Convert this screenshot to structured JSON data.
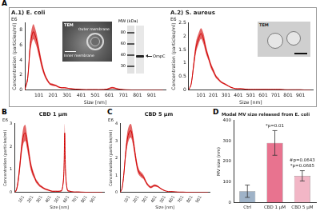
{
  "figure": {
    "panel_labels": [
      "A",
      "B",
      "C",
      "D"
    ],
    "tem_e_coli": {
      "title": "TEM",
      "labels": [
        "Outer membrane",
        "Inner membrane"
      ]
    },
    "blot": {
      "title": "MW (kDa)",
      "markers": [
        80,
        60,
        40,
        30
      ],
      "band_label": "OmpC"
    },
    "tem_s_aureus": {
      "title": "TEM"
    }
  },
  "chart_data": [
    {
      "type": "line",
      "title": "A.1) E. coli",
      "x_label": "Size [nm]",
      "y_label": "Concentration (particles/ml)",
      "annotations": [
        {
          "text": "E6"
        }
      ],
      "color": "#d00000",
      "grid": false,
      "x": [
        1,
        21,
        41,
        61,
        81,
        101,
        121,
        141,
        161,
        181,
        201,
        221,
        241,
        261,
        281,
        301,
        341,
        381,
        421,
        461,
        501,
        541,
        581,
        621,
        661,
        701,
        741,
        781,
        821,
        861,
        901,
        941,
        981
      ],
      "values": [
        0,
        1.5,
        6.2,
        7.8,
        6.9,
        5.2,
        3.4,
        2.1,
        1.3,
        0.8,
        0.7,
        0.6,
        0.4,
        0.3,
        0.3,
        0.25,
        0.15,
        0.1,
        0.05,
        0.05,
        0.05,
        0.05,
        0.1,
        0.3,
        0.15,
        0.05,
        0.02,
        0,
        0,
        0,
        0,
        0,
        0
      ],
      "errors": [
        0,
        0.4,
        0.9,
        1.0,
        0.9,
        0.7,
        0.5,
        0.3,
        0.2,
        0.15,
        0.15,
        0.1,
        0.1,
        0.08,
        0.08,
        0.06,
        0.05,
        0.04,
        0.03,
        0.03,
        0.03,
        0.03,
        0.05,
        0.1,
        0.06,
        0.03,
        0.02,
        0,
        0,
        0,
        0,
        0,
        0
      ],
      "xlim": [
        1,
        1000
      ],
      "xticks": [
        101,
        201,
        301,
        401,
        501,
        601,
        701,
        801,
        901
      ],
      "ylim": [
        0,
        9
      ],
      "yticks": [
        0,
        2,
        4,
        6,
        8
      ]
    },
    {
      "type": "line",
      "title": "A.2) S. aureus",
      "x_label": "Size [nm]",
      "y_label": "Concentration (particles/ml)",
      "annotations": [
        {
          "text": "E6"
        }
      ],
      "color": "#d00000",
      "grid": false,
      "x": [
        1,
        21,
        41,
        61,
        81,
        101,
        121,
        141,
        161,
        181,
        201,
        221,
        241,
        261,
        281,
        301,
        341,
        381,
        421,
        461,
        501,
        541,
        581,
        621,
        661,
        701,
        741,
        781,
        821,
        861,
        901,
        941,
        981
      ],
      "values": [
        0,
        0.2,
        0.9,
        1.6,
        1.9,
        2.1,
        1.9,
        1.5,
        1.2,
        0.9,
        0.7,
        0.5,
        0.4,
        0.3,
        0.25,
        0.2,
        0.1,
        0.05,
        0.05,
        0.03,
        0.02,
        0.02,
        0.02,
        0.02,
        0.02,
        0.02,
        0.02,
        0.01,
        0.01,
        0.01,
        0.01,
        0,
        0
      ],
      "errors": [
        0,
        0.05,
        0.15,
        0.2,
        0.2,
        0.2,
        0.2,
        0.15,
        0.1,
        0.1,
        0.08,
        0.06,
        0.05,
        0.04,
        0.03,
        0.03,
        0.02,
        0.01,
        0.01,
        0.01,
        0.01,
        0.01,
        0.01,
        0.01,
        0.01,
        0.01,
        0.01,
        0,
        0,
        0,
        0,
        0,
        0
      ],
      "xlim": [
        1,
        1000
      ],
      "xticks": [
        101,
        201,
        301,
        401,
        501,
        601,
        701,
        801,
        901
      ],
      "ylim": [
        0,
        2.5
      ],
      "yticks": [
        0,
        0.5,
        1,
        1.5,
        2,
        2.5
      ]
    },
    {
      "type": "line",
      "title": "CBD 1 μm",
      "x_label": "Size [nm]",
      "y_label": "Concentration (particles/ml)",
      "annotations": [
        {
          "text": "E6"
        }
      ],
      "color": "#d00000",
      "grid": false,
      "x": [
        1,
        21,
        41,
        61,
        81,
        101,
        121,
        141,
        161,
        181,
        201,
        221,
        241,
        261,
        281,
        301,
        341,
        381,
        421,
        461,
        501,
        531,
        551,
        561,
        571,
        591,
        621,
        661,
        701,
        781,
        861,
        941,
        981
      ],
      "values": [
        0,
        0.1,
        0.5,
        1.2,
        2.0,
        2.5,
        2.6,
        2.2,
        1.7,
        1.2,
        0.9,
        0.7,
        0.5,
        0.4,
        0.3,
        0.25,
        0.15,
        0.1,
        0.05,
        0.05,
        0.05,
        0.1,
        0.8,
        2.6,
        0.9,
        0.1,
        0.05,
        0.02,
        0.02,
        0.01,
        0,
        0,
        0
      ],
      "errors": [
        0,
        0.05,
        0.15,
        0.25,
        0.3,
        0.35,
        0.35,
        0.3,
        0.25,
        0.2,
        0.15,
        0.1,
        0.08,
        0.07,
        0.06,
        0.05,
        0.04,
        0.03,
        0.02,
        0.02,
        0.02,
        0.04,
        0.2,
        0.4,
        0.2,
        0.04,
        0.02,
        0.01,
        0.01,
        0,
        0,
        0,
        0
      ],
      "xlim": [
        1,
        1000
      ],
      "xticks": [
        101,
        201,
        301,
        401,
        501,
        601,
        701,
        801,
        901
      ],
      "ylim": [
        0,
        3
      ],
      "yticks": [
        0,
        1,
        2,
        3
      ]
    },
    {
      "type": "line",
      "title": "CBD 5 μm",
      "x_label": "Size [nm]",
      "y_label": "Concentration (particles/ml)",
      "annotations": [
        {
          "text": "E6"
        }
      ],
      "color": "#d00000",
      "grid": false,
      "x": [
        1,
        21,
        41,
        61,
        81,
        101,
        121,
        141,
        161,
        181,
        201,
        221,
        241,
        261,
        281,
        301,
        341,
        381,
        421,
        461,
        501,
        541,
        581,
        621,
        661,
        701,
        741,
        781,
        821,
        861,
        901,
        941,
        981
      ],
      "values": [
        0,
        0.2,
        1.0,
        2.2,
        3.1,
        3.5,
        3.6,
        3.2,
        2.5,
        1.8,
        1.3,
        1.1,
        1.0,
        0.9,
        0.7,
        0.5,
        0.3,
        0.4,
        0.35,
        0.2,
        0.1,
        0.05,
        0.05,
        0.03,
        0.02,
        0.02,
        0.01,
        0.01,
        0,
        0,
        0,
        0,
        0
      ],
      "errors": [
        0,
        0.05,
        0.2,
        0.3,
        0.4,
        0.4,
        0.4,
        0.35,
        0.3,
        0.25,
        0.2,
        0.15,
        0.15,
        0.12,
        0.1,
        0.08,
        0.06,
        0.06,
        0.05,
        0.04,
        0.02,
        0.01,
        0.01,
        0.01,
        0.01,
        0.01,
        0,
        0,
        0,
        0,
        0,
        0,
        0
      ],
      "xlim": [
        1,
        1000
      ],
      "xticks": [
        101,
        201,
        301,
        401,
        501,
        601,
        701,
        801,
        901
      ],
      "ylim": [
        0,
        4
      ],
      "yticks": [
        0,
        1,
        2,
        3,
        4
      ]
    },
    {
      "type": "bar",
      "title": "Modal MV size released from E. coli",
      "y_label": "MV size (nm)",
      "grid": false,
      "categories": [
        "Ctrl",
        "CBD 1 μM",
        "CBD 5 μM"
      ],
      "values": [
        55,
        290,
        130
      ],
      "errors": [
        30,
        60,
        25
      ],
      "colors": [
        "#9fb3c8",
        "#e8738f",
        "#f2b6c6"
      ],
      "annotations": [
        {
          "text": "*p=0.01",
          "category": "CBD 1 μM"
        },
        {
          "text": "*p=0.0685",
          "category": "CBD 5 μM"
        },
        {
          "text": "#p=0.0643",
          "category": "CBD 5 μM"
        }
      ],
      "ylim": [
        0,
        400
      ],
      "yticks": [
        0,
        100,
        200,
        300,
        400
      ]
    }
  ]
}
